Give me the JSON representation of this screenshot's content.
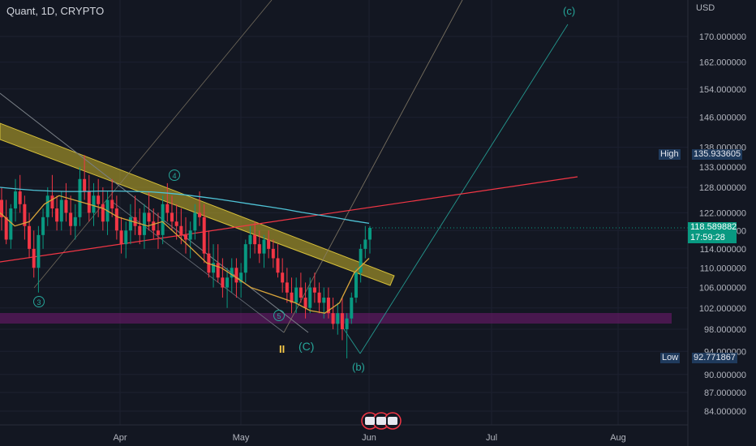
{
  "header": {
    "symbol_line": "Quant, 1D, CRYPTO",
    "currency": "USD"
  },
  "colors": {
    "background": "#131722",
    "up_candle": "#089981",
    "down_candle": "#f23645",
    "ma_long": "#4fc3d6",
    "ma_short": "#d9a53a",
    "channel_band": "#c8b22a",
    "trendline_red": "#f23645",
    "support_zone": "#5b1a5e",
    "wave_label": "#26a69a",
    "corrective_label": "#f7c948"
  },
  "price_axis": {
    "ticks": [
      "170.000000",
      "162.000000",
      "154.000000",
      "146.000000",
      "138.000000",
      "133.000000",
      "128.000000",
      "122.000000",
      "118.000000",
      "114.000000",
      "110.000000",
      "106.000000",
      "102.000000",
      "98.000000",
      "94.000000",
      "90.000000",
      "87.000000",
      "84.000000"
    ]
  },
  "time_axis": {
    "labels": [
      "Apr",
      "May",
      "Jun",
      "Jul",
      "Aug"
    ]
  },
  "badges": {
    "high_label": "High",
    "high_value": "135.933605",
    "low_label": "Low",
    "low_value": "92.771867",
    "current_price": "118.589882",
    "countdown": "17:59:28"
  },
  "wave_labels": {
    "w3": "3",
    "w4": "4",
    "w5": "5",
    "wc_major": "(C)",
    "wb": "(b)",
    "wc_minor": "(c)",
    "pause": "II"
  },
  "chart_data": {
    "type": "candlestick",
    "title": "Quant, 1D, CRYPTO",
    "y_scale": "log",
    "ylim": [
      81.7,
      178.9
    ],
    "x_labels": [
      "Apr",
      "May",
      "Jun",
      "Jul",
      "Aug"
    ],
    "candles_ohlc": [
      [
        125,
        128,
        118,
        121
      ],
      [
        121,
        125,
        115,
        116
      ],
      [
        116,
        124,
        114,
        123
      ],
      [
        123,
        130,
        120,
        127
      ],
      [
        127,
        131,
        122,
        124
      ],
      [
        124,
        126,
        116,
        119
      ],
      [
        119,
        122,
        112,
        114
      ],
      [
        114,
        118,
        108,
        110
      ],
      [
        110,
        119,
        105,
        117
      ],
      [
        117,
        123,
        114,
        121
      ],
      [
        121,
        128,
        119,
        126
      ],
      [
        126,
        131,
        121,
        123
      ],
      [
        123,
        126,
        118,
        120
      ],
      [
        120,
        127,
        118,
        125
      ],
      [
        125,
        129,
        120,
        122
      ],
      [
        122,
        126,
        117,
        119
      ],
      [
        119,
        124,
        116,
        121
      ],
      [
        121,
        133,
        119,
        130
      ],
      [
        130,
        136,
        125,
        127
      ],
      [
        127,
        131,
        120,
        122
      ],
      [
        122,
        129,
        119,
        126
      ],
      [
        126,
        130,
        121,
        124
      ],
      [
        124,
        128,
        118,
        120
      ],
      [
        120,
        127,
        117,
        125
      ],
      [
        125,
        130,
        121,
        123
      ],
      [
        123,
        126,
        116,
        118
      ],
      [
        118,
        121,
        113,
        115
      ],
      [
        115,
        120,
        112,
        118
      ],
      [
        118,
        124,
        115,
        121
      ],
      [
        121,
        126,
        117,
        119
      ],
      [
        119,
        123,
        115,
        117
      ],
      [
        117,
        124,
        114,
        122
      ],
      [
        122,
        127,
        118,
        120
      ],
      [
        120,
        123,
        116,
        118
      ],
      [
        118,
        122,
        114,
        117
      ],
      [
        117,
        126,
        115,
        124
      ],
      [
        124,
        129,
        120,
        122
      ],
      [
        122,
        126,
        118,
        120
      ],
      [
        120,
        124,
        116,
        119
      ],
      [
        119,
        123,
        115,
        117
      ],
      [
        117,
        121,
        113,
        116
      ],
      [
        116,
        120,
        112,
        118
      ],
      [
        118,
        124,
        116,
        122
      ],
      [
        122,
        127,
        119,
        121
      ],
      [
        121,
        124,
        111,
        113
      ],
      [
        113,
        118,
        108,
        109
      ],
      [
        109,
        115,
        106,
        111
      ],
      [
        111,
        115,
        107,
        108
      ],
      [
        108,
        112,
        104,
        106
      ],
      [
        106,
        110,
        102,
        108
      ],
      [
        108,
        112,
        105,
        110
      ],
      [
        110,
        112,
        104,
        107
      ],
      [
        107,
        111,
        104,
        109
      ],
      [
        109,
        116,
        107,
        115
      ],
      [
        115,
        119,
        112,
        117
      ],
      [
        117,
        120,
        113,
        115
      ],
      [
        115,
        118,
        111,
        113
      ],
      [
        113,
        117,
        110,
        116
      ],
      [
        116,
        118,
        112,
        114
      ],
      [
        114,
        116,
        110,
        112
      ],
      [
        112,
        115,
        108,
        109
      ],
      [
        109,
        112,
        105,
        107
      ],
      [
        107,
        110,
        103,
        105
      ],
      [
        105,
        108,
        101,
        103
      ],
      [
        103,
        108,
        101,
        106
      ],
      [
        106,
        109,
        103,
        104
      ],
      [
        104,
        107,
        100,
        102
      ],
      [
        102,
        108,
        101,
        106
      ],
      [
        106,
        109,
        103,
        105
      ],
      [
        105,
        107,
        101,
        103
      ],
      [
        103,
        106,
        100,
        104
      ],
      [
        104,
        106,
        100,
        101
      ],
      [
        101,
        104,
        98,
        99
      ],
      [
        99,
        103,
        97,
        101
      ],
      [
        101,
        104,
        96,
        98
      ],
      [
        98,
        101,
        92.77,
        100
      ],
      [
        100,
        105,
        99,
        104
      ],
      [
        104,
        110,
        103,
        109
      ],
      [
        109,
        115,
        107,
        114
      ],
      [
        114,
        119,
        112,
        116
      ],
      [
        116,
        119,
        113,
        118.59
      ]
    ],
    "ma_long": [
      128,
      127.6,
      127.3,
      127.1,
      127.0,
      127.0,
      127.1,
      127.1,
      127.0,
      126.9,
      126.6,
      126.2,
      125.7,
      125.2,
      124.6,
      124.0,
      123.4,
      122.8,
      122.1,
      121.5,
      120.9,
      120.2,
      119.6
    ],
    "ma_short": [
      122,
      119,
      120,
      124,
      126,
      125,
      124,
      123,
      121,
      120,
      119,
      120,
      117,
      114,
      111,
      110,
      108,
      106,
      105,
      104,
      103,
      101.5,
      101,
      103,
      109,
      112
    ],
    "price_levels": {
      "high": 135.933605,
      "low": 92.771867,
      "current": 118.589882
    }
  }
}
